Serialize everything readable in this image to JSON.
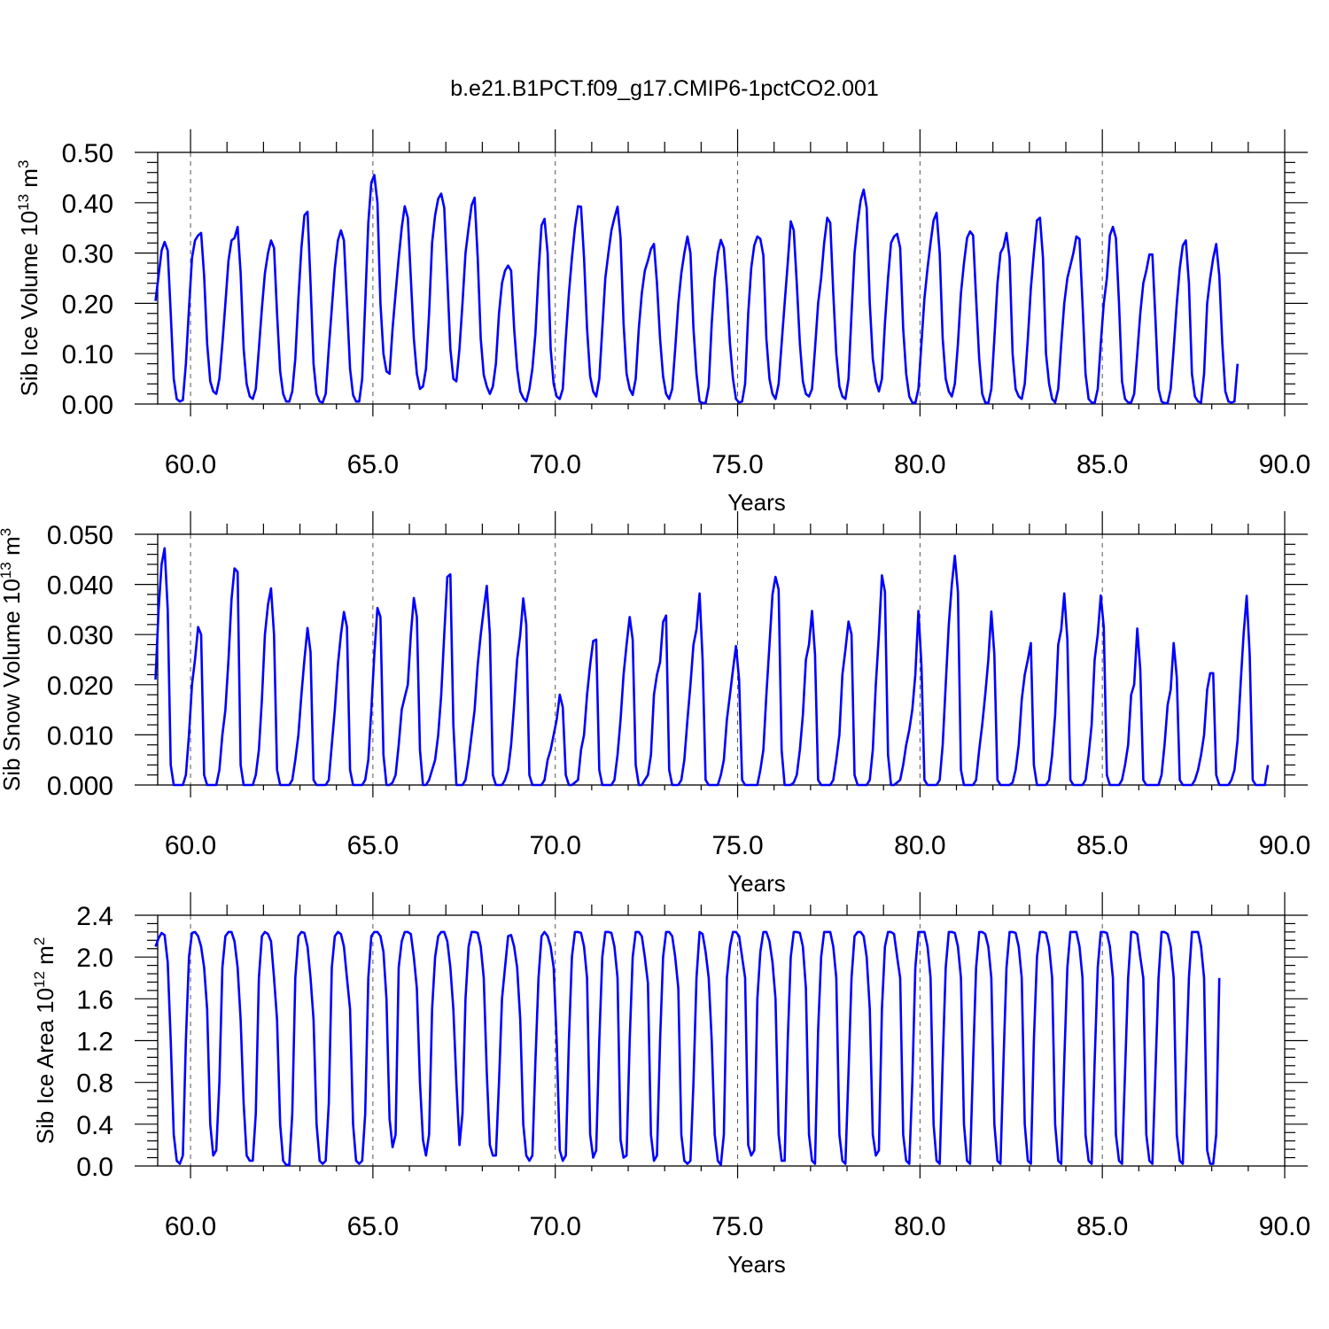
{
  "title": "b.e21.B1PCT.f09_g17.CMIP6-1pctCO2.001",
  "colors": {
    "series": "#0000ff",
    "axes": "#000000",
    "reference_lines": "#555555"
  },
  "chart_data": [
    {
      "type": "line",
      "title": "b.e21.B1PCT.f09_g17.CMIP6-1pctCO2.001",
      "xlabel": "Years",
      "ylabel": "Sib Ice Volume 10^13 m^3",
      "ylabel_parts": {
        "base": "Sib Ice Volume 10",
        "exp1": "13",
        "unit": " m",
        "exp2": "3"
      },
      "xlim": [
        59.1,
        90.0
      ],
      "ylim": [
        0.0,
        0.5
      ],
      "x_ticks": [
        60,
        65,
        70,
        75,
        80,
        85,
        90
      ],
      "x_tick_labels": [
        "60.0",
        "65.0",
        "70.0",
        "75.0",
        "80.0",
        "85.0",
        "90.0"
      ],
      "y_ticks": [
        0.0,
        0.1,
        0.2,
        0.3,
        0.4,
        0.5
      ],
      "y_tick_labels": [
        "0.00",
        "0.10",
        "0.20",
        "0.30",
        "0.40",
        "0.50"
      ],
      "reference_lines_x": [
        60,
        65,
        70,
        75,
        80,
        85,
        90
      ],
      "grid": false,
      "x_start": 59.04,
      "x_step": 0.0833333,
      "values": [
        0.205,
        0.255,
        0.305,
        0.322,
        0.305,
        0.18,
        0.05,
        0.01,
        0.005,
        0.008,
        0.08,
        0.19,
        0.29,
        0.325,
        0.335,
        0.34,
        0.255,
        0.12,
        0.045,
        0.025,
        0.02,
        0.05,
        0.12,
        0.2,
        0.285,
        0.325,
        0.33,
        0.352,
        0.26,
        0.11,
        0.04,
        0.015,
        0.01,
        0.03,
        0.11,
        0.19,
        0.26,
        0.3,
        0.325,
        0.31,
        0.18,
        0.065,
        0.02,
        0.005,
        0.005,
        0.025,
        0.09,
        0.21,
        0.31,
        0.375,
        0.382,
        0.24,
        0.08,
        0.02,
        0.005,
        0.003,
        0.02,
        0.11,
        0.19,
        0.27,
        0.325,
        0.345,
        0.325,
        0.2,
        0.07,
        0.018,
        0.005,
        0.005,
        0.05,
        0.2,
        0.36,
        0.44,
        0.455,
        0.4,
        0.2,
        0.1,
        0.065,
        0.06,
        0.15,
        0.22,
        0.29,
        0.35,
        0.393,
        0.37,
        0.25,
        0.13,
        0.06,
        0.03,
        0.035,
        0.07,
        0.18,
        0.32,
        0.375,
        0.408,
        0.418,
        0.39,
        0.25,
        0.11,
        0.05,
        0.045,
        0.11,
        0.2,
        0.3,
        0.35,
        0.395,
        0.41,
        0.29,
        0.13,
        0.058,
        0.035,
        0.02,
        0.035,
        0.08,
        0.18,
        0.24,
        0.265,
        0.275,
        0.265,
        0.15,
        0.07,
        0.025,
        0.012,
        0.005,
        0.03,
        0.07,
        0.14,
        0.26,
        0.355,
        0.368,
        0.3,
        0.11,
        0.04,
        0.015,
        0.01,
        0.03,
        0.13,
        0.22,
        0.29,
        0.35,
        0.393,
        0.392,
        0.29,
        0.15,
        0.055,
        0.025,
        0.015,
        0.05,
        0.15,
        0.25,
        0.3,
        0.345,
        0.37,
        0.392,
        0.33,
        0.16,
        0.06,
        0.03,
        0.018,
        0.05,
        0.15,
        0.22,
        0.265,
        0.285,
        0.308,
        0.318,
        0.24,
        0.13,
        0.055,
        0.02,
        0.01,
        0.03,
        0.11,
        0.2,
        0.26,
        0.3,
        0.333,
        0.3,
        0.15,
        0.06,
        0.005,
        0.002,
        0.002,
        0.035,
        0.16,
        0.25,
        0.3,
        0.326,
        0.31,
        0.23,
        0.12,
        0.05,
        0.01,
        0.003,
        0.005,
        0.04,
        0.18,
        0.27,
        0.315,
        0.333,
        0.328,
        0.295,
        0.13,
        0.05,
        0.02,
        0.01,
        0.04,
        0.12,
        0.2,
        0.28,
        0.363,
        0.345,
        0.24,
        0.12,
        0.045,
        0.02,
        0.015,
        0.03,
        0.11,
        0.2,
        0.25,
        0.32,
        0.37,
        0.36,
        0.22,
        0.1,
        0.035,
        0.015,
        0.01,
        0.05,
        0.18,
        0.3,
        0.36,
        0.405,
        0.426,
        0.39,
        0.2,
        0.09,
        0.045,
        0.025,
        0.05,
        0.16,
        0.25,
        0.32,
        0.333,
        0.338,
        0.31,
        0.15,
        0.06,
        0.015,
        0.003,
        0.002,
        0.03,
        0.12,
        0.21,
        0.27,
        0.32,
        0.365,
        0.38,
        0.3,
        0.13,
        0.05,
        0.025,
        0.015,
        0.04,
        0.12,
        0.22,
        0.28,
        0.33,
        0.343,
        0.335,
        0.21,
        0.09,
        0.02,
        0.003,
        0.002,
        0.03,
        0.13,
        0.24,
        0.3,
        0.312,
        0.34,
        0.29,
        0.1,
        0.03,
        0.015,
        0.01,
        0.04,
        0.13,
        0.23,
        0.3,
        0.365,
        0.37,
        0.29,
        0.1,
        0.04,
        0.01,
        0.003,
        0.03,
        0.12,
        0.2,
        0.25,
        0.275,
        0.3,
        0.333,
        0.328,
        0.2,
        0.06,
        0.01,
        0.003,
        0.002,
        0.03,
        0.12,
        0.2,
        0.25,
        0.335,
        0.352,
        0.33,
        0.2,
        0.045,
        0.01,
        0.003,
        0.003,
        0.02,
        0.1,
        0.18,
        0.24,
        0.265,
        0.297,
        0.297,
        0.17,
        0.03,
        0.005,
        0.002,
        0.002,
        0.03,
        0.11,
        0.2,
        0.27,
        0.315,
        0.325,
        0.24,
        0.06,
        0.015,
        0.005,
        0.003,
        0.06,
        0.2,
        0.25,
        0.29,
        0.318,
        0.255,
        0.12,
        0.025,
        0.005,
        0.003,
        0.005,
        0.08
      ]
    },
    {
      "type": "line",
      "xlabel": "Years",
      "ylabel": "Sib Snow Volume 10^13 m^3",
      "ylabel_parts": {
        "base": "Sib Snow Volume 10",
        "exp1": "13",
        "unit": " m",
        "exp2": "3"
      },
      "xlim": [
        59.1,
        90.0
      ],
      "ylim": [
        0.0,
        0.05
      ],
      "x_ticks": [
        60,
        65,
        70,
        75,
        80,
        85,
        90
      ],
      "x_tick_labels": [
        "60.0",
        "65.0",
        "70.0",
        "75.0",
        "80.0",
        "85.0",
        "90.0"
      ],
      "y_ticks": [
        0.0,
        0.01,
        0.02,
        0.03,
        0.04,
        0.05
      ],
      "y_tick_labels": [
        "0.000",
        "0.010",
        "0.020",
        "0.030",
        "0.040",
        "0.050"
      ],
      "reference_lines_x": [
        60,
        65,
        70,
        75,
        80,
        85,
        90
      ],
      "grid": false,
      "x_start": 59.04,
      "x_step": 0.0833333,
      "values": [
        0.021,
        0.035,
        0.044,
        0.0472,
        0.035,
        0.004,
        0.0,
        0.0,
        0.0,
        0.0,
        0.002,
        0.01,
        0.02,
        0.025,
        0.0315,
        0.03,
        0.002,
        0.0,
        0.0,
        0.0,
        0.0,
        0.003,
        0.01,
        0.015,
        0.025,
        0.037,
        0.0432,
        0.0425,
        0.004,
        0.0,
        0.0,
        0.0,
        0.0,
        0.002,
        0.007,
        0.017,
        0.03,
        0.036,
        0.0392,
        0.03,
        0.003,
        0.0,
        0.0,
        0.0,
        0.0,
        0.001,
        0.005,
        0.01,
        0.018,
        0.025,
        0.0313,
        0.0265,
        0.001,
        0.0,
        0.0,
        0.0,
        0.0,
        0.001,
        0.008,
        0.015,
        0.024,
        0.03,
        0.0345,
        0.0315,
        0.003,
        0.0,
        0.0,
        0.0,
        0.0,
        0.001,
        0.005,
        0.015,
        0.026,
        0.0353,
        0.0335,
        0.006,
        0.0,
        0.0,
        0.0005,
        0.002,
        0.008,
        0.015,
        0.0175,
        0.02,
        0.03,
        0.0373,
        0.0335,
        0.007,
        0.0,
        0.0,
        0.001,
        0.003,
        0.005,
        0.01,
        0.018,
        0.03,
        0.0415,
        0.042,
        0.012,
        0.0,
        0.0,
        0.0,
        0.001,
        0.005,
        0.01,
        0.015,
        0.024,
        0.03,
        0.035,
        0.0397,
        0.03,
        0.002,
        0.0,
        0.0,
        0.0,
        0.001,
        0.003,
        0.008,
        0.016,
        0.025,
        0.03,
        0.0372,
        0.032,
        0.002,
        0.0,
        0.0,
        0.0,
        0.0,
        0.001,
        0.005,
        0.007,
        0.01,
        0.013,
        0.018,
        0.0155,
        0.002,
        0.0,
        0.0,
        0.0005,
        0.001,
        0.007,
        0.01,
        0.018,
        0.024,
        0.0287,
        0.029,
        0.003,
        0.0,
        0.0,
        0.0,
        0.0,
        0.001,
        0.006,
        0.013,
        0.022,
        0.028,
        0.0335,
        0.029,
        0.004,
        0.0,
        0.0,
        0.001,
        0.002,
        0.006,
        0.018,
        0.022,
        0.0245,
        0.0325,
        0.0338,
        0.003,
        0.0,
        0.0,
        0.0,
        0.001,
        0.005,
        0.013,
        0.02,
        0.028,
        0.031,
        0.0382,
        0.025,
        0.001,
        0.0,
        0.0,
        0.0,
        0.0,
        0.002,
        0.005,
        0.013,
        0.018,
        0.023,
        0.0277,
        0.021,
        0.001,
        0.0,
        0.0,
        0.0,
        0.0,
        0.0,
        0.003,
        0.007,
        0.018,
        0.028,
        0.038,
        0.0415,
        0.039,
        0.007,
        0.0,
        0.0,
        0.0,
        0.0005,
        0.002,
        0.007,
        0.014,
        0.025,
        0.028,
        0.0347,
        0.026,
        0.001,
        0.0,
        0.0,
        0.0,
        0.0,
        0.001,
        0.005,
        0.01,
        0.022,
        0.027,
        0.0326,
        0.03,
        0.002,
        0.0,
        0.0,
        0.0,
        0.0,
        0.001,
        0.007,
        0.02,
        0.03,
        0.0418,
        0.0385,
        0.006,
        0.0,
        0.0,
        0.0005,
        0.001,
        0.004,
        0.008,
        0.011,
        0.015,
        0.022,
        0.0347,
        0.024,
        0.001,
        0.0,
        0.0,
        0.0,
        0.0,
        0.001,
        0.008,
        0.02,
        0.032,
        0.04,
        0.0457,
        0.0385,
        0.003,
        0.0,
        0.0,
        0.0,
        0.0,
        0.001,
        0.007,
        0.012,
        0.018,
        0.025,
        0.0346,
        0.026,
        0.001,
        0.0,
        0.0,
        0.0,
        0.0,
        0.0005,
        0.003,
        0.008,
        0.017,
        0.022,
        0.025,
        0.0283,
        0.004,
        0.0,
        0.0,
        0.0,
        0.0,
        0.001,
        0.006,
        0.014,
        0.028,
        0.031,
        0.0382,
        0.029,
        0.001,
        0.0,
        0.0,
        0.0,
        0.0,
        0.001,
        0.006,
        0.012,
        0.025,
        0.03,
        0.0378,
        0.0315,
        0.002,
        0.0,
        0.0,
        0.0,
        0.0,
        0.001,
        0.004,
        0.008,
        0.018,
        0.02,
        0.0312,
        0.023,
        0.001,
        0.0,
        0.0,
        0.0,
        0.0,
        0.0,
        0.002,
        0.008,
        0.016,
        0.019,
        0.0283,
        0.0215,
        0.001,
        0.0,
        0.0,
        0.0,
        0.0,
        0.001,
        0.003,
        0.006,
        0.01,
        0.019,
        0.0223,
        0.0223,
        0.002,
        0.0,
        0.0,
        0.0,
        0.0,
        0.001,
        0.003,
        0.009,
        0.02,
        0.03,
        0.0377,
        0.026,
        0.001,
        0.0,
        0.0,
        0.0,
        0.0,
        0.004
      ]
    },
    {
      "type": "line",
      "xlabel": "Years",
      "ylabel": "Sib Ice Area 10^12 m^2",
      "ylabel_parts": {
        "base": "Sib Ice Area 10",
        "exp1": "12",
        "unit": " m",
        "exp2": "2"
      },
      "xlim": [
        59.1,
        90.0
      ],
      "ylim": [
        0.0,
        2.4
      ],
      "x_ticks": [
        60,
        65,
        70,
        75,
        80,
        85,
        90
      ],
      "x_tick_labels": [
        "60.0",
        "65.0",
        "70.0",
        "75.0",
        "80.0",
        "85.0",
        "90.0"
      ],
      "y_ticks": [
        0.0,
        0.4,
        0.8,
        1.2,
        1.6,
        2.0,
        2.4
      ],
      "y_tick_labels": [
        "0.0",
        "0.4",
        "0.8",
        "1.2",
        "1.6",
        "2.0",
        "2.4"
      ],
      "reference_lines_x": [
        60,
        65,
        70,
        75,
        80,
        85,
        90
      ],
      "grid": false,
      "x_start": 59.04,
      "x_step": 0.0833333,
      "values": [
        2.1,
        2.18,
        2.23,
        2.21,
        1.95,
        1.2,
        0.3,
        0.05,
        0.02,
        0.1,
        1.2,
        2.0,
        2.23,
        2.24,
        2.2,
        2.1,
        1.9,
        1.5,
        0.4,
        0.1,
        0.15,
        0.8,
        1.9,
        2.2,
        2.24,
        2.24,
        2.15,
        1.9,
        1.4,
        0.6,
        0.1,
        0.05,
        0.05,
        0.5,
        1.8,
        2.2,
        2.24,
        2.22,
        2.15,
        1.8,
        1.4,
        0.4,
        0.05,
        0.01,
        0.01,
        0.5,
        1.8,
        2.2,
        2.24,
        2.23,
        2.1,
        1.8,
        1.4,
        0.4,
        0.05,
        0.02,
        0.05,
        0.6,
        1.9,
        2.2,
        2.24,
        2.22,
        2.1,
        1.8,
        1.5,
        0.4,
        0.05,
        0.02,
        0.05,
        0.5,
        1.8,
        2.2,
        2.24,
        2.24,
        2.2,
        2.05,
        1.6,
        0.45,
        0.18,
        0.3,
        1.9,
        2.15,
        2.24,
        2.24,
        2.22,
        2.0,
        1.7,
        0.8,
        0.25,
        0.1,
        0.3,
        1.5,
        2.0,
        2.2,
        2.24,
        2.24,
        2.15,
        1.9,
        1.5,
        0.8,
        0.2,
        0.5,
        1.6,
        2.1,
        2.24,
        2.24,
        2.23,
        2.1,
        1.8,
        0.9,
        0.2,
        0.1,
        0.1,
        0.8,
        1.6,
        1.9,
        2.2,
        2.21,
        2.1,
        1.9,
        1.4,
        0.4,
        0.1,
        0.05,
        0.1,
        1.0,
        1.8,
        2.2,
        2.24,
        2.2,
        2.1,
        1.9,
        1.2,
        0.15,
        0.05,
        0.1,
        1.2,
        2.0,
        2.24,
        2.24,
        2.23,
        2.1,
        1.8,
        0.3,
        0.08,
        0.15,
        1.2,
        2.0,
        2.24,
        2.24,
        2.23,
        2.1,
        1.8,
        0.25,
        0.08,
        0.1,
        1.2,
        2.0,
        2.24,
        2.24,
        2.2,
        2.0,
        1.75,
        0.3,
        0.05,
        0.1,
        1.2,
        2.0,
        2.24,
        2.24,
        2.2,
        2.0,
        1.7,
        0.3,
        0.05,
        0.02,
        0.05,
        0.8,
        1.8,
        2.24,
        2.22,
        2.05,
        1.8,
        1.2,
        0.3,
        0.05,
        0.01,
        0.3,
        1.8,
        2.1,
        2.24,
        2.24,
        2.2,
        2.0,
        1.8,
        0.2,
        0.1,
        0.15,
        1.6,
        2.05,
        2.24,
        2.24,
        2.15,
        1.95,
        1.6,
        0.3,
        0.05,
        0.05,
        1.2,
        2.0,
        2.24,
        2.24,
        2.23,
        2.1,
        1.7,
        0.3,
        0.05,
        0.02,
        1.3,
        2.0,
        2.24,
        2.24,
        2.24,
        2.1,
        1.8,
        0.3,
        0.05,
        0.02,
        0.9,
        1.8,
        2.2,
        2.24,
        2.24,
        2.2,
        2.0,
        1.5,
        0.3,
        0.1,
        0.15,
        1.5,
        2.1,
        2.24,
        2.24,
        2.22,
        2.0,
        1.8,
        0.3,
        0.05,
        0.02,
        0.8,
        1.9,
        2.24,
        2.24,
        2.24,
        2.1,
        1.8,
        0.4,
        0.05,
        0.02,
        1.0,
        1.9,
        2.24,
        2.24,
        2.23,
        2.1,
        1.8,
        0.4,
        0.05,
        0.02,
        1.0,
        1.9,
        2.24,
        2.24,
        2.22,
        2.1,
        1.8,
        0.4,
        0.05,
        0.02,
        1.0,
        1.9,
        2.24,
        2.24,
        2.23,
        2.1,
        1.8,
        0.4,
        0.05,
        0.02,
        1.2,
        2.0,
        2.24,
        2.24,
        2.23,
        2.1,
        1.8,
        0.4,
        0.05,
        0.02,
        1.0,
        1.9,
        2.24,
        2.24,
        2.24,
        2.1,
        1.8,
        0.3,
        0.05,
        0.02,
        1.0,
        1.9,
        2.24,
        2.24,
        2.23,
        2.1,
        1.8,
        0.3,
        0.05,
        0.02,
        0.9,
        1.8,
        2.24,
        2.24,
        2.22,
        2.0,
        1.8,
        0.3,
        0.05,
        0.02,
        0.9,
        1.8,
        2.24,
        2.24,
        2.22,
        2.1,
        1.8,
        0.3,
        0.05,
        0.02,
        0.9,
        1.8,
        2.24,
        2.24,
        2.24,
        2.1,
        1.8,
        0.15,
        0.02,
        0.02,
        0.3,
        1.8
      ]
    }
  ]
}
